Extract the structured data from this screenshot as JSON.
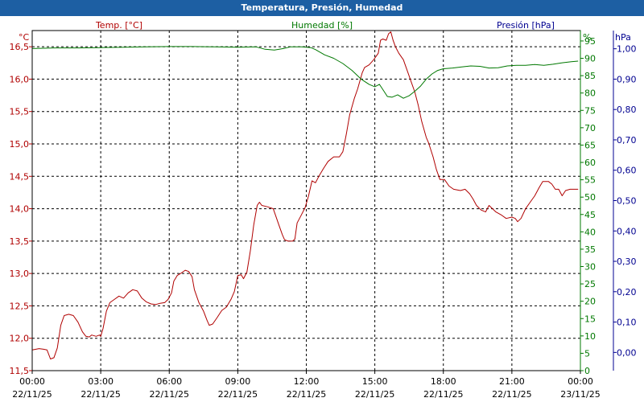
{
  "window": {
    "title": "Temperatura, Presión, Humedad"
  },
  "chart_data": {
    "type": "line",
    "grid": true,
    "colors": {
      "temp": "#b00000",
      "hum": "#007800",
      "pres": "#000090"
    },
    "axes": {
      "temp": {
        "label": "Temp. [°C]",
        "unit": "°C",
        "min": 11.5,
        "max": 16.75,
        "ticks": [
          "11,5",
          "12,0",
          "12,5",
          "13,0",
          "13,5",
          "14,0",
          "14,5",
          "15,0",
          "15,5",
          "16,0",
          "16,5"
        ]
      },
      "hum": {
        "label": "Humedad [%]",
        "unit": "%",
        "min": 0,
        "max": 98,
        "ticks": [
          "0",
          "5",
          "10",
          "15",
          "20",
          "25",
          "30",
          "35",
          "40",
          "45",
          "50",
          "55",
          "60",
          "65",
          "70",
          "75",
          "80",
          "85",
          "90",
          "95"
        ]
      },
      "pres": {
        "label": "Presión [hPa]",
        "unit": "hPa",
        "min": -0.06,
        "max": 1.06,
        "ticks": [
          "0,00",
          "0,10",
          "0,20",
          "0,30",
          "0,40",
          "0,50",
          "0,60",
          "0,70",
          "0,80",
          "0,90",
          "1,00"
        ]
      }
    },
    "x_ticks": [
      {
        "time": "00:00",
        "date": "22/11/25"
      },
      {
        "time": "03:00",
        "date": "22/11/25"
      },
      {
        "time": "06:00",
        "date": "22/11/25"
      },
      {
        "time": "09:00",
        "date": "22/11/25"
      },
      {
        "time": "12:00",
        "date": "22/11/25"
      },
      {
        "time": "15:00",
        "date": "22/11/25"
      },
      {
        "time": "18:00",
        "date": "22/11/25"
      },
      {
        "time": "21:00",
        "date": "22/11/25"
      },
      {
        "time": "00:00",
        "date": "23/11/25"
      }
    ],
    "x_range_hours": [
      0,
      24
    ],
    "series": [
      {
        "name": "Temp. [°C]",
        "axis": "temp",
        "color": "#b00000",
        "points": [
          [
            0,
            11.82
          ],
          [
            0.3,
            11.84
          ],
          [
            0.5,
            11.83
          ],
          [
            0.65,
            11.82
          ],
          [
            0.8,
            11.68
          ],
          [
            0.95,
            11.7
          ],
          [
            1.1,
            11.85
          ],
          [
            1.25,
            12.2
          ],
          [
            1.4,
            12.35
          ],
          [
            1.6,
            12.37
          ],
          [
            1.8,
            12.35
          ],
          [
            2.0,
            12.25
          ],
          [
            2.2,
            12.1
          ],
          [
            2.35,
            12.03
          ],
          [
            2.5,
            12.02
          ],
          [
            2.6,
            12.05
          ],
          [
            2.8,
            12.03
          ],
          [
            2.95,
            12.05
          ],
          [
            3.0,
            12.03
          ],
          [
            3.1,
            12.15
          ],
          [
            3.25,
            12.42
          ],
          [
            3.4,
            12.55
          ],
          [
            3.6,
            12.6
          ],
          [
            3.8,
            12.65
          ],
          [
            4.0,
            12.62
          ],
          [
            4.2,
            12.7
          ],
          [
            4.4,
            12.75
          ],
          [
            4.6,
            12.73
          ],
          [
            4.8,
            12.62
          ],
          [
            5.0,
            12.56
          ],
          [
            5.2,
            12.53
          ],
          [
            5.4,
            12.52
          ],
          [
            5.6,
            12.54
          ],
          [
            5.8,
            12.55
          ],
          [
            5.95,
            12.6
          ],
          [
            6.1,
            12.7
          ],
          [
            6.2,
            12.88
          ],
          [
            6.35,
            12.97
          ],
          [
            6.5,
            13.0
          ],
          [
            6.7,
            13.05
          ],
          [
            6.85,
            13.03
          ],
          [
            7.0,
            12.95
          ],
          [
            7.1,
            12.75
          ],
          [
            7.3,
            12.55
          ],
          [
            7.5,
            12.42
          ],
          [
            7.65,
            12.28
          ],
          [
            7.75,
            12.2
          ],
          [
            7.9,
            12.22
          ],
          [
            8.1,
            12.32
          ],
          [
            8.3,
            12.43
          ],
          [
            8.5,
            12.48
          ],
          [
            8.7,
            12.6
          ],
          [
            8.85,
            12.72
          ],
          [
            9.0,
            12.97
          ],
          [
            9.15,
            12.98
          ],
          [
            9.25,
            12.92
          ],
          [
            9.4,
            13.02
          ],
          [
            9.55,
            13.35
          ],
          [
            9.7,
            13.75
          ],
          [
            9.85,
            14.05
          ],
          [
            9.95,
            14.1
          ],
          [
            10.05,
            14.05
          ],
          [
            10.3,
            14.03
          ],
          [
            10.55,
            14.0
          ],
          [
            10.65,
            13.9
          ],
          [
            10.8,
            13.75
          ],
          [
            10.95,
            13.6
          ],
          [
            11.05,
            13.52
          ],
          [
            11.2,
            13.5
          ],
          [
            11.4,
            13.5
          ],
          [
            11.5,
            13.53
          ],
          [
            11.6,
            13.78
          ],
          [
            11.75,
            13.88
          ],
          [
            11.95,
            14.02
          ],
          [
            12.1,
            14.2
          ],
          [
            12.25,
            14.43
          ],
          [
            12.4,
            14.4
          ],
          [
            12.55,
            14.5
          ],
          [
            12.75,
            14.62
          ],
          [
            12.95,
            14.73
          ],
          [
            13.2,
            14.8
          ],
          [
            13.45,
            14.8
          ],
          [
            13.6,
            14.88
          ],
          [
            13.75,
            15.15
          ],
          [
            13.9,
            15.45
          ],
          [
            14.1,
            15.7
          ],
          [
            14.25,
            15.85
          ],
          [
            14.45,
            16.1
          ],
          [
            14.55,
            16.18
          ],
          [
            14.75,
            16.22
          ],
          [
            14.95,
            16.3
          ],
          [
            15.15,
            16.4
          ],
          [
            15.25,
            16.6
          ],
          [
            15.35,
            16.62
          ],
          [
            15.5,
            16.6
          ],
          [
            15.6,
            16.7
          ],
          [
            15.7,
            16.73
          ],
          [
            15.8,
            16.6
          ],
          [
            15.9,
            16.5
          ],
          [
            16.05,
            16.4
          ],
          [
            16.25,
            16.3
          ],
          [
            16.45,
            16.1
          ],
          [
            16.55,
            16.0
          ],
          [
            16.75,
            15.8
          ],
          [
            16.9,
            15.6
          ],
          [
            17.05,
            15.35
          ],
          [
            17.25,
            15.1
          ],
          [
            17.35,
            15.02
          ],
          [
            17.55,
            14.8
          ],
          [
            17.7,
            14.6
          ],
          [
            17.85,
            14.45
          ],
          [
            18.05,
            14.45
          ],
          [
            18.25,
            14.35
          ],
          [
            18.45,
            14.3
          ],
          [
            18.75,
            14.28
          ],
          [
            18.95,
            14.3
          ],
          [
            19.15,
            14.23
          ],
          [
            19.3,
            14.15
          ],
          [
            19.45,
            14.05
          ],
          [
            19.65,
            13.98
          ],
          [
            19.85,
            13.95
          ],
          [
            20.0,
            14.05
          ],
          [
            20.15,
            14.0
          ],
          [
            20.3,
            13.95
          ],
          [
            20.55,
            13.9
          ],
          [
            20.75,
            13.85
          ],
          [
            21.0,
            13.87
          ],
          [
            21.15,
            13.85
          ],
          [
            21.25,
            13.8
          ],
          [
            21.4,
            13.85
          ],
          [
            21.6,
            14.0
          ],
          [
            21.8,
            14.1
          ],
          [
            22.0,
            14.2
          ],
          [
            22.2,
            14.33
          ],
          [
            22.35,
            14.42
          ],
          [
            22.6,
            14.42
          ],
          [
            22.75,
            14.38
          ],
          [
            22.9,
            14.3
          ],
          [
            23.05,
            14.3
          ],
          [
            23.2,
            14.2
          ],
          [
            23.35,
            14.28
          ],
          [
            23.55,
            14.3
          ],
          [
            23.75,
            14.3
          ],
          [
            23.9,
            14.3
          ]
        ]
      },
      {
        "name": "Humedad [%]",
        "axis": "hum",
        "color": "#007800",
        "points": [
          [
            0,
            92.8
          ],
          [
            1,
            93.0
          ],
          [
            2,
            93.0
          ],
          [
            3,
            93.1
          ],
          [
            4,
            93.2
          ],
          [
            5,
            93.3
          ],
          [
            6,
            93.4
          ],
          [
            7,
            93.4
          ],
          [
            8,
            93.3
          ],
          [
            9,
            93.2
          ],
          [
            9.8,
            93.3
          ],
          [
            10.2,
            92.6
          ],
          [
            10.6,
            92.4
          ],
          [
            11.0,
            92.8
          ],
          [
            11.3,
            93.3
          ],
          [
            11.8,
            93.3
          ],
          [
            12.2,
            93.1
          ],
          [
            12.4,
            92.5
          ],
          [
            12.8,
            91.0
          ],
          [
            13.2,
            90.0
          ],
          [
            13.6,
            88.5
          ],
          [
            14.0,
            86.5
          ],
          [
            14.4,
            84.0
          ],
          [
            14.75,
            82.5
          ],
          [
            15.0,
            81.8
          ],
          [
            15.2,
            82.5
          ],
          [
            15.35,
            81.0
          ],
          [
            15.55,
            79.0
          ],
          [
            15.75,
            78.8
          ],
          [
            16.0,
            79.5
          ],
          [
            16.25,
            78.5
          ],
          [
            16.5,
            79.2
          ],
          [
            16.75,
            80.5
          ],
          [
            17.0,
            82.0
          ],
          [
            17.25,
            84.0
          ],
          [
            17.5,
            85.5
          ],
          [
            17.75,
            86.5
          ],
          [
            18.0,
            87.0
          ],
          [
            18.4,
            87.2
          ],
          [
            18.8,
            87.5
          ],
          [
            19.2,
            87.8
          ],
          [
            19.6,
            87.7
          ],
          [
            20.0,
            87.2
          ],
          [
            20.4,
            87.3
          ],
          [
            20.8,
            87.8
          ],
          [
            21.2,
            88.0
          ],
          [
            21.6,
            88.0
          ],
          [
            22.0,
            88.2
          ],
          [
            22.4,
            88.0
          ],
          [
            22.8,
            88.3
          ],
          [
            23.2,
            88.7
          ],
          [
            23.6,
            89.0
          ],
          [
            23.9,
            89.2
          ]
        ]
      }
    ]
  }
}
